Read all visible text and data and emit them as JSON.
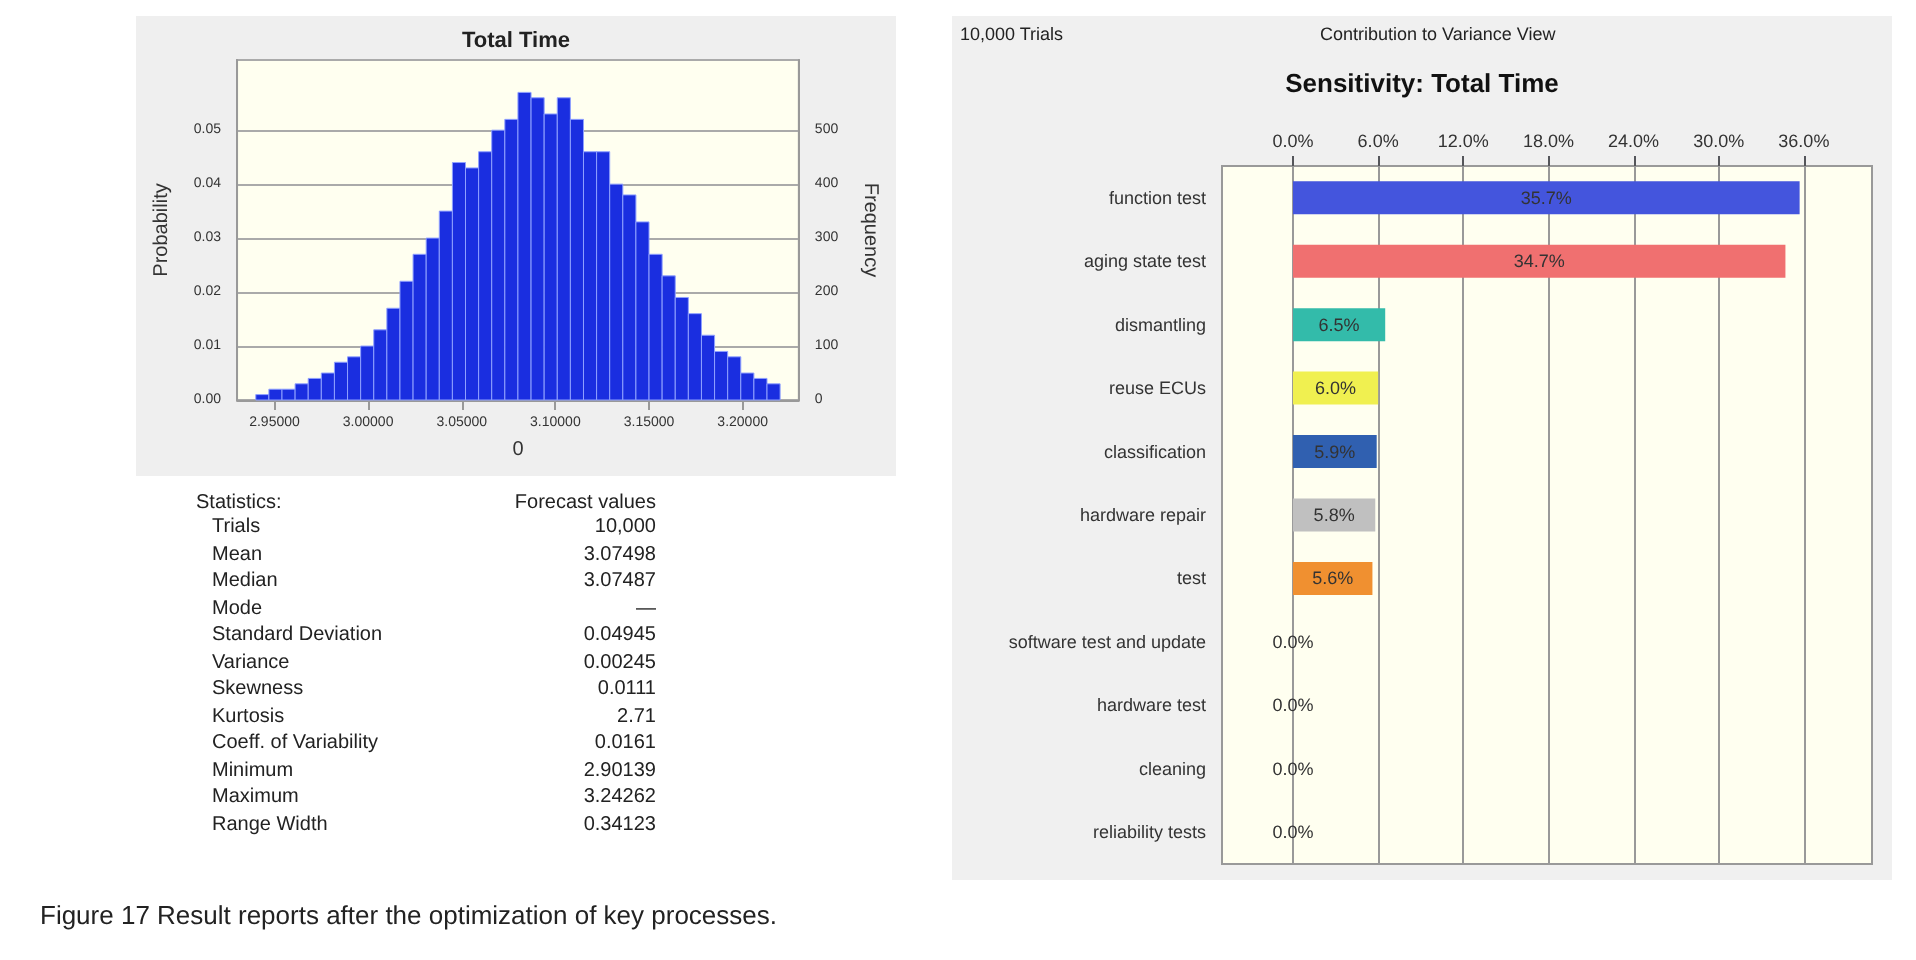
{
  "chart_data": [
    {
      "type": "histogram",
      "title": "Total Time",
      "xlabel": "0",
      "ylabel": "Probability",
      "y2label": "Frequency",
      "color": "#1a2ee0",
      "bins": [
        2.94,
        2.947,
        2.954,
        2.961,
        2.968,
        2.975,
        2.982,
        2.989,
        2.996,
        3.003,
        3.01,
        3.017,
        3.024,
        3.031,
        3.038,
        3.045,
        3.052,
        3.059,
        3.066,
        3.073,
        3.08,
        3.087,
        3.094,
        3.101,
        3.108,
        3.115,
        3.122,
        3.129,
        3.136,
        3.143,
        3.15,
        3.157,
        3.164,
        3.171,
        3.178,
        3.185,
        3.192,
        3.199,
        3.206,
        3.213,
        3.22
      ],
      "values": [
        0.001,
        0.002,
        0.002,
        0.003,
        0.004,
        0.005,
        0.007,
        0.008,
        0.01,
        0.013,
        0.017,
        0.022,
        0.027,
        0.03,
        0.035,
        0.044,
        0.043,
        0.046,
        0.05,
        0.052,
        0.057,
        0.056,
        0.053,
        0.056,
        0.052,
        0.046,
        0.046,
        0.04,
        0.038,
        0.033,
        0.027,
        0.023,
        0.019,
        0.016,
        0.012,
        0.009,
        0.008,
        0.005,
        0.004,
        0.003
      ],
      "xlim": [
        2.93,
        3.23
      ],
      "xticks": [
        {
          "value": 2.95,
          "label": "2.95000"
        },
        {
          "value": 3,
          "label": "3.00000"
        },
        {
          "value": 3.05,
          "label": "3.05000"
        },
        {
          "value": 3.1,
          "label": "3.10000"
        },
        {
          "value": 3.15,
          "label": "3.15000"
        },
        {
          "value": 3.2,
          "label": "3.20000"
        }
      ],
      "ylim": [
        0,
        0.063
      ],
      "yticks": [
        {
          "value": 0,
          "label": "0.00"
        },
        0.01,
        0.02,
        0.03,
        0.04,
        0.05
      ],
      "y2lim": [
        0,
        630
      ],
      "y2ticks": [
        0,
        100,
        200,
        300,
        400,
        500
      ],
      "grid": "y",
      "annotations": [
        "Figure 17 Result reports after the optimization of key processes."
      ]
    },
    {
      "type": "other",
      "annotations": [
        "Statistics:",
        "Forecast values"
      ],
      "categories": [
        "Trials",
        "Mean",
        "Median",
        "Mode",
        "Standard Deviation",
        "Variance",
        "Skewness",
        "Kurtosis",
        "Coeff. of Variability",
        "Minimum",
        "Maximum",
        "Range Width"
      ],
      "value_labels": [
        "10,000",
        "3.07498",
        "3.07487",
        "—",
        "0.04945",
        "0.00245",
        "0.0111",
        "2.71",
        "0.0161",
        "2.90139",
        "3.24262",
        "0.34123"
      ]
    },
    {
      "type": "bar",
      "orientation": "horizontal",
      "title": "Sensitivity: Total Time",
      "annotations": [
        "10,000 Trials",
        "Contribution to Variance View"
      ],
      "categories": [
        "function test",
        "aging state test",
        "dismantling",
        "reuse ECUs",
        "classification",
        "hardware repair",
        "test",
        "software test and update",
        "hardware test",
        "cleaning",
        "reliability tests"
      ],
      "values": [
        35.7,
        34.7,
        6.5,
        6.0,
        5.9,
        5.8,
        5.6,
        0,
        0,
        0,
        0
      ],
      "colors": [
        "#4455dd",
        "#f07070",
        "#33bbaa",
        "#f0f050",
        "#3060b0",
        "#c0c0c0",
        "#f09030",
        "#888888",
        "#888888",
        "#888888",
        "#888888"
      ],
      "value_labels": [
        "35.7%",
        "34.7%",
        "6.5%",
        "6.0%",
        "5.9%",
        "5.8%",
        "5.6%",
        "0.0%",
        "0.0%",
        "0.0%",
        "0.0%"
      ],
      "xlim": [
        -5,
        40.8
      ],
      "xticks": [
        {
          "value": 0,
          "label": "0.0%"
        },
        {
          "value": 6,
          "label": "6.0%"
        },
        {
          "value": 12,
          "label": "12.0%"
        },
        {
          "value": 18,
          "label": "18.0%"
        },
        {
          "value": 24,
          "label": "24.0%"
        },
        {
          "value": 30,
          "label": "30.0%"
        },
        {
          "value": 36,
          "label": "36.0%"
        }
      ],
      "grid": "x"
    }
  ]
}
